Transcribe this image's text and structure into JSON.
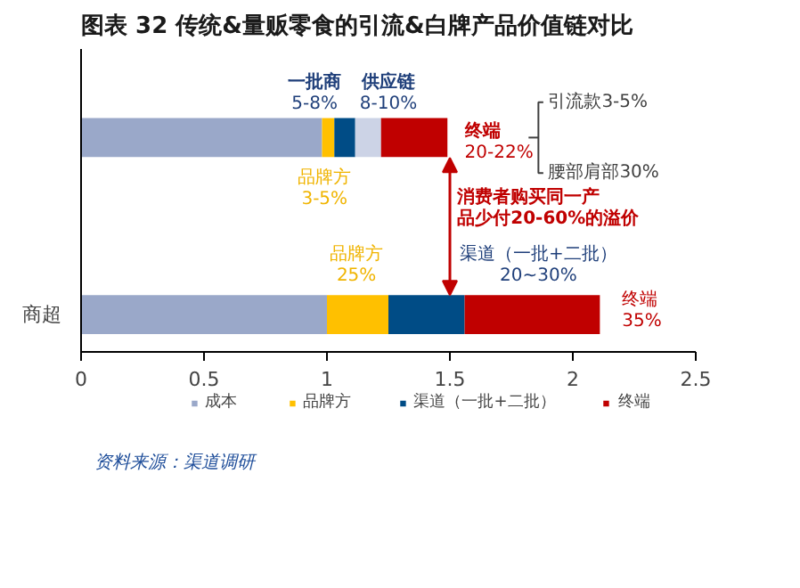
{
  "chart_data": {
    "type": "bar",
    "orientation": "horizontal",
    "stacked": true,
    "title": "图表 32 传统&量贩零食的引流&白牌产品价值链对比",
    "categories": [
      null,
      "商超"
    ],
    "series": [
      {
        "name": "成本",
        "color": "#9aa8c9",
        "values": [
          0.98,
          1.0
        ]
      },
      {
        "name": "品牌方",
        "color": "#ffc000",
        "values": [
          0.05,
          0.25
        ]
      },
      {
        "name": "渠道（一批+二批）",
        "color": "#004c86",
        "values": [
          0.085,
          0.31
        ]
      },
      {
        "color": "#ccd3e6",
        "values": [
          0.105,
          null
        ]
      },
      {
        "name": "终端",
        "color": "#c00000",
        "values": [
          0.27,
          0.55
        ]
      }
    ],
    "xlim": [
      0,
      2.5
    ],
    "xticks": [
      0,
      0.5,
      1,
      1.5,
      2,
      2.5
    ],
    "legend": "bottom",
    "annotations": [
      "一批商",
      "5-8%",
      "供应链",
      "8-10%",
      "品牌方",
      "3-5%",
      "终端",
      "20-22%",
      "引流款3-5%",
      "腰部肩部30%",
      "消费者购买同一产",
      "品少付20-60%的溢价",
      "品牌方",
      "25%",
      "渠道（一批+二批）",
      "20~30%",
      "终端",
      "35%",
      "资料来源：渠道调研"
    ]
  }
}
